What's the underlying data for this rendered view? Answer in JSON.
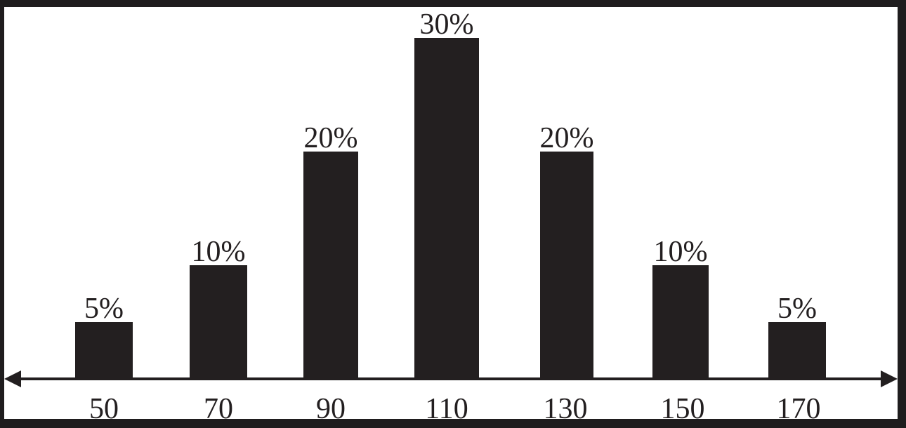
{
  "chart_data": {
    "type": "bar",
    "categories": [
      "50",
      "70",
      "90",
      "110",
      "130",
      "150",
      "170"
    ],
    "values": [
      5,
      10,
      20,
      30,
      20,
      10,
      5
    ],
    "data_labels": [
      "5%",
      "10%",
      "20%",
      "30%",
      "20%",
      "10%",
      "5%"
    ],
    "title": "",
    "xlabel": "",
    "ylabel": "",
    "ylim": [
      0,
      30
    ],
    "grid": false,
    "legend": "none",
    "x_axis_arrows": "both"
  },
  "colors": {
    "bar": "#231f20",
    "background": "#ffffff",
    "border": "#1f1d1e"
  }
}
